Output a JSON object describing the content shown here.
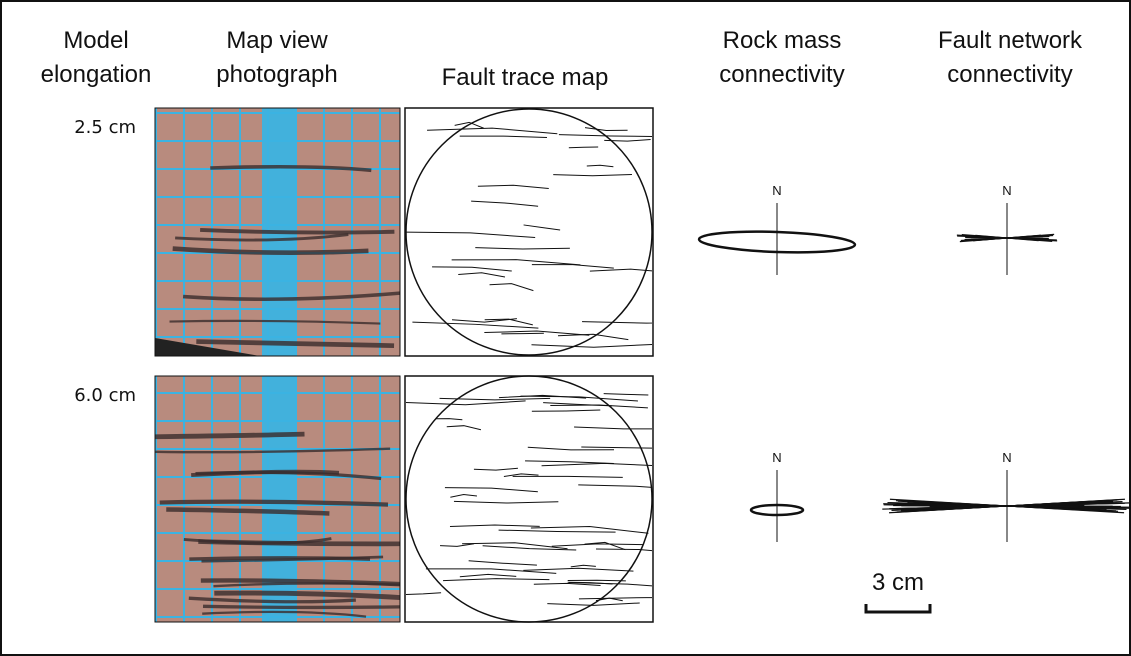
{
  "columns": [
    {
      "lines": [
        "Model",
        "elongation"
      ]
    },
    {
      "lines": [
        "Map view",
        "photograph"
      ]
    },
    {
      "lines": [
        "Fault trace map"
      ]
    },
    {
      "lines": [
        "Rock mass",
        "connectivity"
      ]
    },
    {
      "lines": [
        "Fault network",
        "connectivity"
      ]
    }
  ],
  "rows": [
    {
      "label": "2.5 cm",
      "compass_labels": [
        "N",
        "N"
      ]
    },
    {
      "label": "6.0 cm",
      "compass_labels": [
        "N",
        "N"
      ]
    }
  ],
  "scale_bar": {
    "label": "3 cm"
  }
}
